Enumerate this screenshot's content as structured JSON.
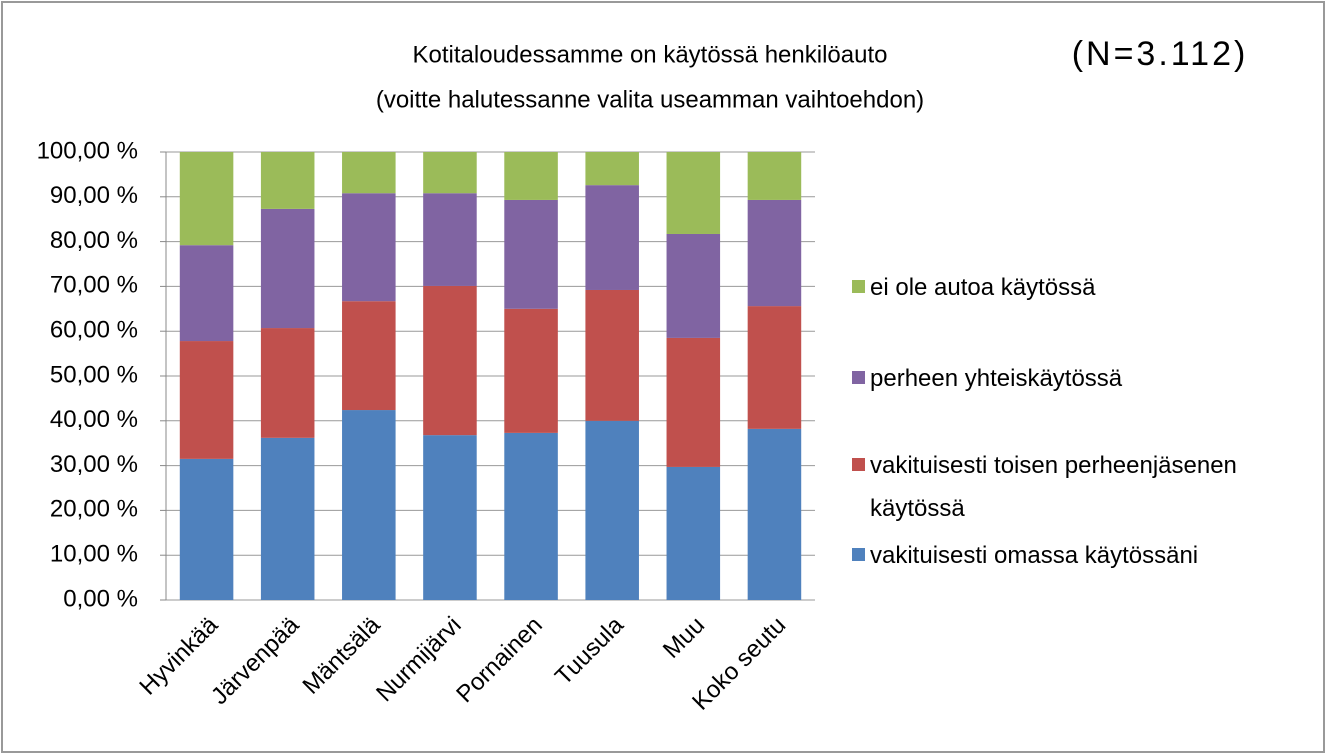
{
  "chart_data": {
    "type": "stacked_bar",
    "title": "Kotitaloudessamme on käytössä henkilöauto",
    "subtitle": "(voitte halutessanne valita useamman vaihtoehdon)",
    "annotation": "(N=3.112)",
    "categories": [
      "Hyvinkää",
      "Järvenpää",
      "Mäntsälä",
      "Nurmijärvi",
      "Pornainen",
      "Tuusula",
      "Muu",
      "Koko seutu"
    ],
    "series": [
      {
        "name": "vakituisesti omassa käytössäni",
        "color": "#4f81bd",
        "values": [
          31.5,
          36.2,
          42.4,
          36.8,
          37.3,
          40.0,
          29.7,
          38.2
        ]
      },
      {
        "name": "vakituisesti toisen perheenjäsenen käytössä",
        "color": "#c0504d",
        "values": [
          26.3,
          24.5,
          24.3,
          33.3,
          27.7,
          29.2,
          28.8,
          27.4
        ]
      },
      {
        "name": "perheen yhteiskäytössä",
        "color": "#8064a2",
        "values": [
          21.4,
          26.6,
          24.1,
          20.7,
          24.3,
          23.4,
          23.2,
          23.7
        ]
      },
      {
        "name": "ei ole autoa käytössä",
        "color": "#9bbb59",
        "values": [
          20.8,
          12.7,
          9.2,
          9.2,
          10.7,
          7.4,
          18.3,
          10.7
        ]
      }
    ],
    "ylim": [
      0,
      100
    ],
    "yticks": [
      {
        "value": 0,
        "label": "0,00 %"
      },
      {
        "value": 10,
        "label": "10,00 %"
      },
      {
        "value": 20,
        "label": "20,00 %"
      },
      {
        "value": 30,
        "label": "30,00 %"
      },
      {
        "value": 40,
        "label": "40,00 %"
      },
      {
        "value": 50,
        "label": "50,00 %"
      },
      {
        "value": 60,
        "label": "60,00 %"
      },
      {
        "value": 70,
        "label": "70,00 %"
      },
      {
        "value": 80,
        "label": "80,00 %"
      },
      {
        "value": 90,
        "label": "90,00 %"
      },
      {
        "value": 100,
        "label": "100,00 %"
      }
    ],
    "grid": true,
    "legend": "right"
  }
}
